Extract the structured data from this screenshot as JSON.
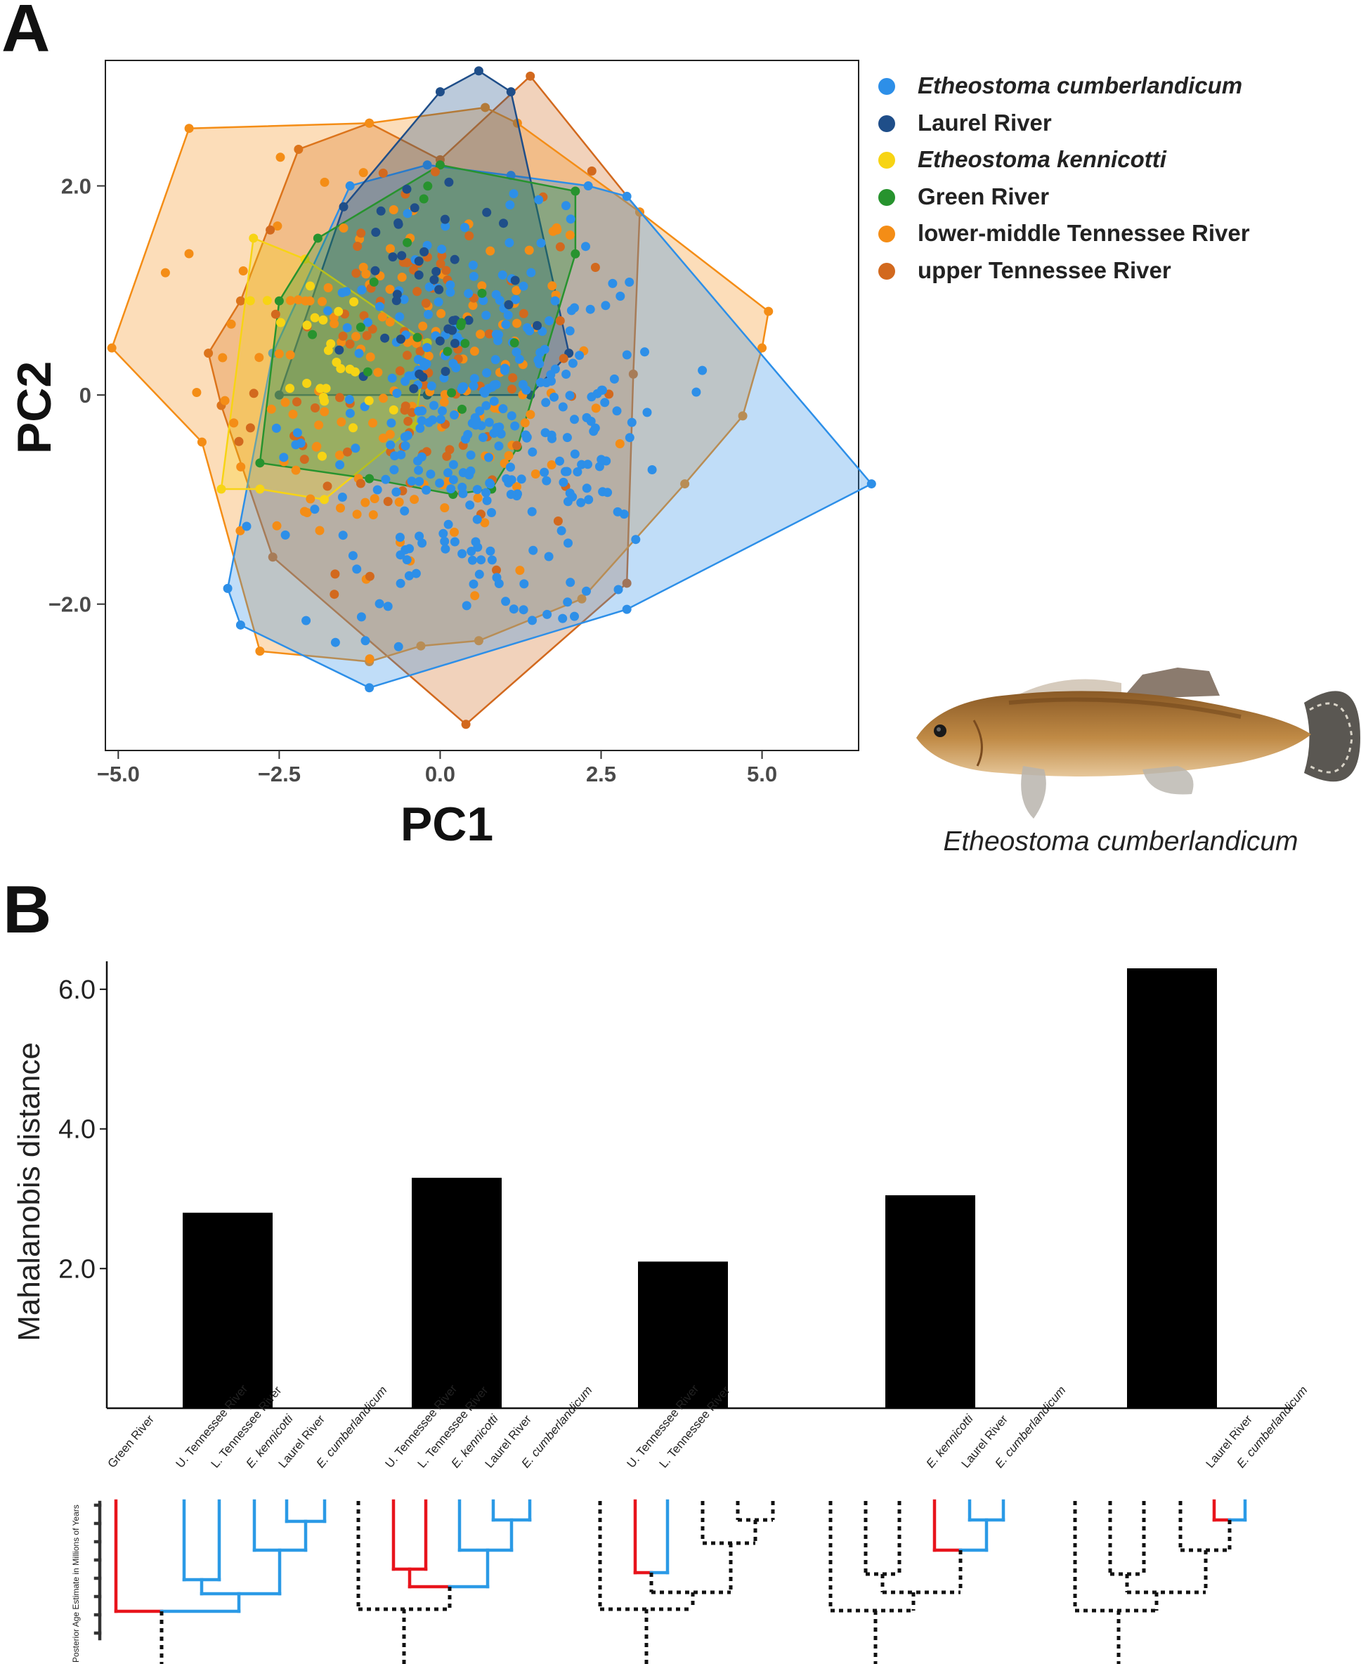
{
  "panel_labels": {
    "a": "A",
    "b": "B"
  },
  "legend": [
    {
      "label": "Etheostoma cumberlandicum",
      "color": "#2d8fe8",
      "italic": true
    },
    {
      "label": "Laurel River",
      "color": "#1f4e89",
      "italic": false
    },
    {
      "label": "Etheostoma kennicotti",
      "color": "#f7d414",
      "italic": true
    },
    {
      "label": "Green River",
      "color": "#27932e",
      "italic": false
    },
    {
      "label": "lower-middle Tennessee River",
      "color": "#f48d16",
      "italic": false
    },
    {
      "label": "upper Tennessee River",
      "color": "#d2691e",
      "italic": false
    }
  ],
  "fish_caption": "Etheostoma cumberlandicum",
  "chart_data": [
    {
      "type": "scatter",
      "xlabel": "PC1",
      "ylabel": "PC2",
      "xlim": [
        -5.2,
        6.5
      ],
      "ylim": [
        -3.4,
        3.2
      ],
      "xticks": [
        -5.0,
        -2.5,
        0.0,
        2.5,
        5.0
      ],
      "xtick_labels": [
        "−5.0",
        "−2.5",
        "0.0",
        "2.5",
        "5.0"
      ],
      "yticks": [
        -2.0,
        0,
        2.0
      ],
      "ytick_labels": [
        "−2.0",
        "0",
        "2.0"
      ],
      "grid": false,
      "legend_position": "right",
      "hulls": [
        {
          "name": "Etheostoma cumberlandicum",
          "color": "#2d8fe8",
          "points": [
            [
              -3.3,
              -1.85
            ],
            [
              -2.6,
              0.4
            ],
            [
              -1.4,
              2.0
            ],
            [
              -0.2,
              2.2
            ],
            [
              1.1,
              2.1
            ],
            [
              2.3,
              2.0
            ],
            [
              2.9,
              1.9
            ],
            [
              6.7,
              -0.85
            ],
            [
              2.9,
              -2.05
            ],
            [
              -1.1,
              -2.8
            ],
            [
              -3.1,
              -2.2
            ]
          ]
        },
        {
          "name": "Laurel River",
          "color": "#1f4e89",
          "points": [
            [
              -2.5,
              0.0
            ],
            [
              -1.5,
              1.8
            ],
            [
              0.0,
              2.9
            ],
            [
              0.6,
              3.1
            ],
            [
              1.1,
              2.9
            ],
            [
              2.0,
              0.4
            ],
            [
              1.4,
              0.0
            ],
            [
              -0.2,
              0.0
            ]
          ]
        },
        {
          "name": "Etheostoma kennicotti",
          "color": "#f7d414",
          "points": [
            [
              -3.4,
              -0.9
            ],
            [
              -2.9,
              1.5
            ],
            [
              -2.1,
              1.3
            ],
            [
              -0.2,
              0.5
            ],
            [
              -0.4,
              -0.3
            ],
            [
              -1.8,
              -1.0
            ],
            [
              -2.8,
              -0.9
            ]
          ]
        },
        {
          "name": "Green River",
          "color": "#27932e",
          "points": [
            [
              -2.8,
              -0.65
            ],
            [
              -2.5,
              0.9
            ],
            [
              -1.9,
              1.5
            ],
            [
              0.0,
              2.2
            ],
            [
              2.1,
              1.95
            ],
            [
              2.1,
              1.35
            ],
            [
              1.2,
              -0.5
            ],
            [
              0.8,
              -0.9
            ],
            [
              0.2,
              -0.95
            ],
            [
              -1.1,
              -0.8
            ]
          ]
        },
        {
          "name": "lower-middle Tennessee River",
          "color": "#f48d16",
          "points": [
            [
              -5.1,
              0.45
            ],
            [
              -3.9,
              2.55
            ],
            [
              -1.1,
              2.6
            ],
            [
              0.7,
              2.75
            ],
            [
              1.2,
              2.6
            ],
            [
              3.1,
              1.75
            ],
            [
              5.1,
              0.8
            ],
            [
              5.0,
              0.45
            ],
            [
              4.7,
              -0.2
            ],
            [
              3.8,
              -0.85
            ],
            [
              2.2,
              -1.95
            ],
            [
              0.6,
              -2.35
            ],
            [
              -0.3,
              -2.4
            ],
            [
              -1.1,
              -2.55
            ],
            [
              -2.8,
              -2.45
            ],
            [
              -3.7,
              -0.45
            ]
          ]
        },
        {
          "name": "upper Tennessee River",
          "color": "#d2691e",
          "points": [
            [
              -3.6,
              0.4
            ],
            [
              -3.1,
              0.9
            ],
            [
              -2.2,
              2.35
            ],
            [
              -1.1,
              2.6
            ],
            [
              0.0,
              2.25
            ],
            [
              1.4,
              3.05
            ],
            [
              3.1,
              1.75
            ],
            [
              3.0,
              0.2
            ],
            [
              2.9,
              -1.8
            ],
            [
              0.4,
              -3.15
            ],
            [
              -2.6,
              -1.55
            ],
            [
              -3.4,
              -0.1
            ]
          ]
        }
      ],
      "scatter_counts": {
        "Etheostoma cumberlandicum": 320,
        "Laurel River": 40,
        "Etheostoma kennicotti": 25,
        "Green River": 16,
        "lower-middle Tennessee River": 150,
        "upper Tennessee River": 100
      }
    },
    {
      "type": "bar",
      "ylabel": "Mahalanobis distance",
      "ylim": [
        0,
        6.3
      ],
      "yticks": [
        2.0,
        4.0,
        6.0
      ],
      "ytick_labels": [
        "2.0",
        "4.0",
        "6.0"
      ],
      "values": [
        2.8,
        3.3,
        2.1,
        3.05,
        6.3
      ],
      "color": "#000000"
    }
  ],
  "trees": {
    "axis_label": "Posterior Age Estimate in Millions of Years",
    "tip_labels": [
      [
        "Green River",
        "U. Tennessee River",
        "L. Tennessee River",
        "E. kennicotti",
        "Laurel River",
        "E. cumberlandicum"
      ],
      [
        "U. Tennessee River",
        "L. Tennessee River",
        "E. kennicotti",
        "Laurel River",
        "E. cumberlandicum"
      ],
      [
        "U. Tennessee River",
        "L. Tennessee River"
      ],
      [
        "E. kennicotti",
        "Laurel River",
        "E. cumberlandicum"
      ],
      [
        "Laurel River",
        "E. cumberlandicum"
      ]
    ],
    "colors": {
      "highlight": "#e8141c",
      "other": "#2b9ae6",
      "collapsed": "#111111"
    }
  }
}
